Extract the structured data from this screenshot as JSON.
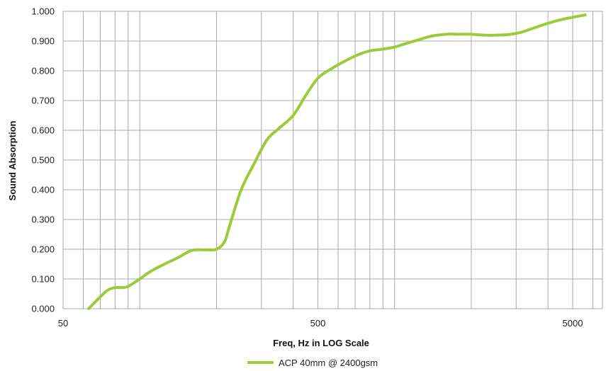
{
  "chart_data": {
    "type": "line",
    "xscale": "log",
    "xlim": [
      50,
      6000
    ],
    "ylim": [
      0,
      1
    ],
    "grid": {
      "horizontal": true,
      "vertical": true
    },
    "xlabel": "Freq, Hz in LOG Scale",
    "ylabel": "Sound Absorption",
    "x_ticks": [
      50,
      500,
      5000
    ],
    "x_tick_labels": [
      "50",
      "500",
      "5000"
    ],
    "y_ticks": [
      0,
      0.1,
      0.2,
      0.3,
      0.4,
      0.5,
      0.6,
      0.7,
      0.8,
      0.9,
      1.0
    ],
    "y_tick_labels": [
      "0.000",
      "0.100",
      "0.200",
      "0.300",
      "0.400",
      "0.500",
      "0.600",
      "0.700",
      "0.800",
      "0.900",
      "1.000"
    ],
    "legend_position": "bottom-center",
    "series": [
      {
        "name": "ACP 40mm @ 2400gsm",
        "color": "#9bcb3b",
        "x": [
          63,
          70,
          75,
          80,
          85,
          90,
          100,
          110,
          125,
          140,
          160,
          180,
          200,
          215,
          225,
          250,
          280,
          315,
          350,
          400,
          450,
          500,
          560,
          630,
          710,
          800,
          900,
          1000,
          1120,
          1250,
          1400,
          1600,
          1800,
          2000,
          2250,
          2500,
          2800,
          3150,
          3550,
          4000,
          4500,
          5000,
          5600
        ],
        "values": [
          0.0,
          0.04,
          0.063,
          0.071,
          0.071,
          0.075,
          0.1,
          0.125,
          0.15,
          0.17,
          0.196,
          0.198,
          0.2,
          0.225,
          0.278,
          0.4,
          0.485,
          0.567,
          0.605,
          0.65,
          0.72,
          0.775,
          0.805,
          0.83,
          0.852,
          0.867,
          0.873,
          0.88,
          0.893,
          0.905,
          0.917,
          0.923,
          0.923,
          0.923,
          0.92,
          0.92,
          0.922,
          0.93,
          0.945,
          0.96,
          0.972,
          0.98,
          0.988
        ]
      }
    ]
  }
}
